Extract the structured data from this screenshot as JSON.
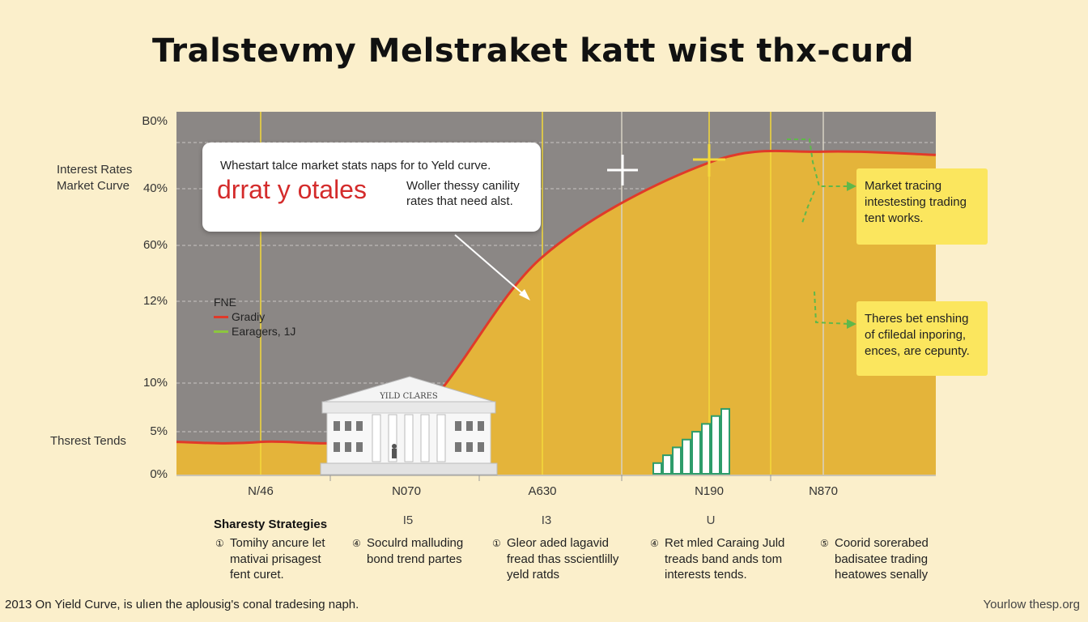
{
  "title": "Tralstevmy Melstraket katt wist thx-curd",
  "left_labels": {
    "upper": [
      "Interest Rates",
      "Market Curve"
    ],
    "lower": "Thsrest Tends"
  },
  "callout": {
    "line1": "Whestart talce market stats naps for to Yeld curve.",
    "big": "drrat y otales",
    "side": "Woller thessy canility rates that need alst."
  },
  "notes": [
    "Market tracing intestesting trading tent works.",
    "Theres bet enshing of cfiledal inporing, ences, are cepunty."
  ],
  "legend": {
    "title": "FNE",
    "items": [
      {
        "label": "Gradiy",
        "color": "#e03a2a"
      },
      {
        "label": "Earagers, 1J",
        "color": "#8cc63f"
      }
    ]
  },
  "building_label": "YILD CLARES",
  "strategies": {
    "heading": "Sharesty Strategies",
    "numbers": [
      "I5",
      "I3",
      "U"
    ],
    "items": [
      {
        "icon": "①",
        "text": "Tomihy ancure let",
        "more": [
          "mativai prisagest",
          "fent curet."
        ]
      },
      {
        "icon": "④",
        "text": "Soculrd malluding",
        "more": [
          "bond trend partes"
        ]
      },
      {
        "icon": "①",
        "text": "Gleor aded lagavid",
        "more": [
          "fread thas sscientlilly",
          "yeld ratds"
        ]
      },
      {
        "icon": "④",
        "text": "Ret mled Caraing Juld",
        "more": [
          "treads band ands tom",
          "interests tends."
        ]
      },
      {
        "icon": "⑤",
        "text": "Coorid sorerabed",
        "more": [
          "badisatee trading",
          "heatowes senally"
        ]
      }
    ]
  },
  "footer": {
    "left": "2013 On Yield Curve, is ulıen the aplousig's conal tradesing naph.",
    "right": "Yourlow thesp.org"
  },
  "colors": {
    "plot_bg": "#8b8785",
    "curve": "#e03a2a",
    "fill": "#e4b43a",
    "note_bg": "#fbe65e",
    "page_bg": "#fbefcb"
  },
  "chart_data": {
    "type": "area",
    "y_tick_labels": [
      "B0%",
      "40%",
      "60%",
      "12%",
      "10%",
      "5%",
      "0%"
    ],
    "x_tick_labels": [
      "N/46",
      "N070",
      "A630",
      "N190",
      "N870"
    ],
    "ylabel": "",
    "xlabel": "",
    "series": [
      {
        "x": [
          "N/46",
          "N070",
          "A630",
          "N190",
          "N870"
        ],
        "values": [
          0.09,
          0.14,
          0.6,
          0.86,
          0.89
        ]
      }
    ],
    "mini_bars": [
      0.15,
      0.26,
      0.37,
      0.48,
      0.59,
      0.7,
      0.81,
      0.91
    ],
    "grid": true,
    "legend_position": "left-middle"
  }
}
